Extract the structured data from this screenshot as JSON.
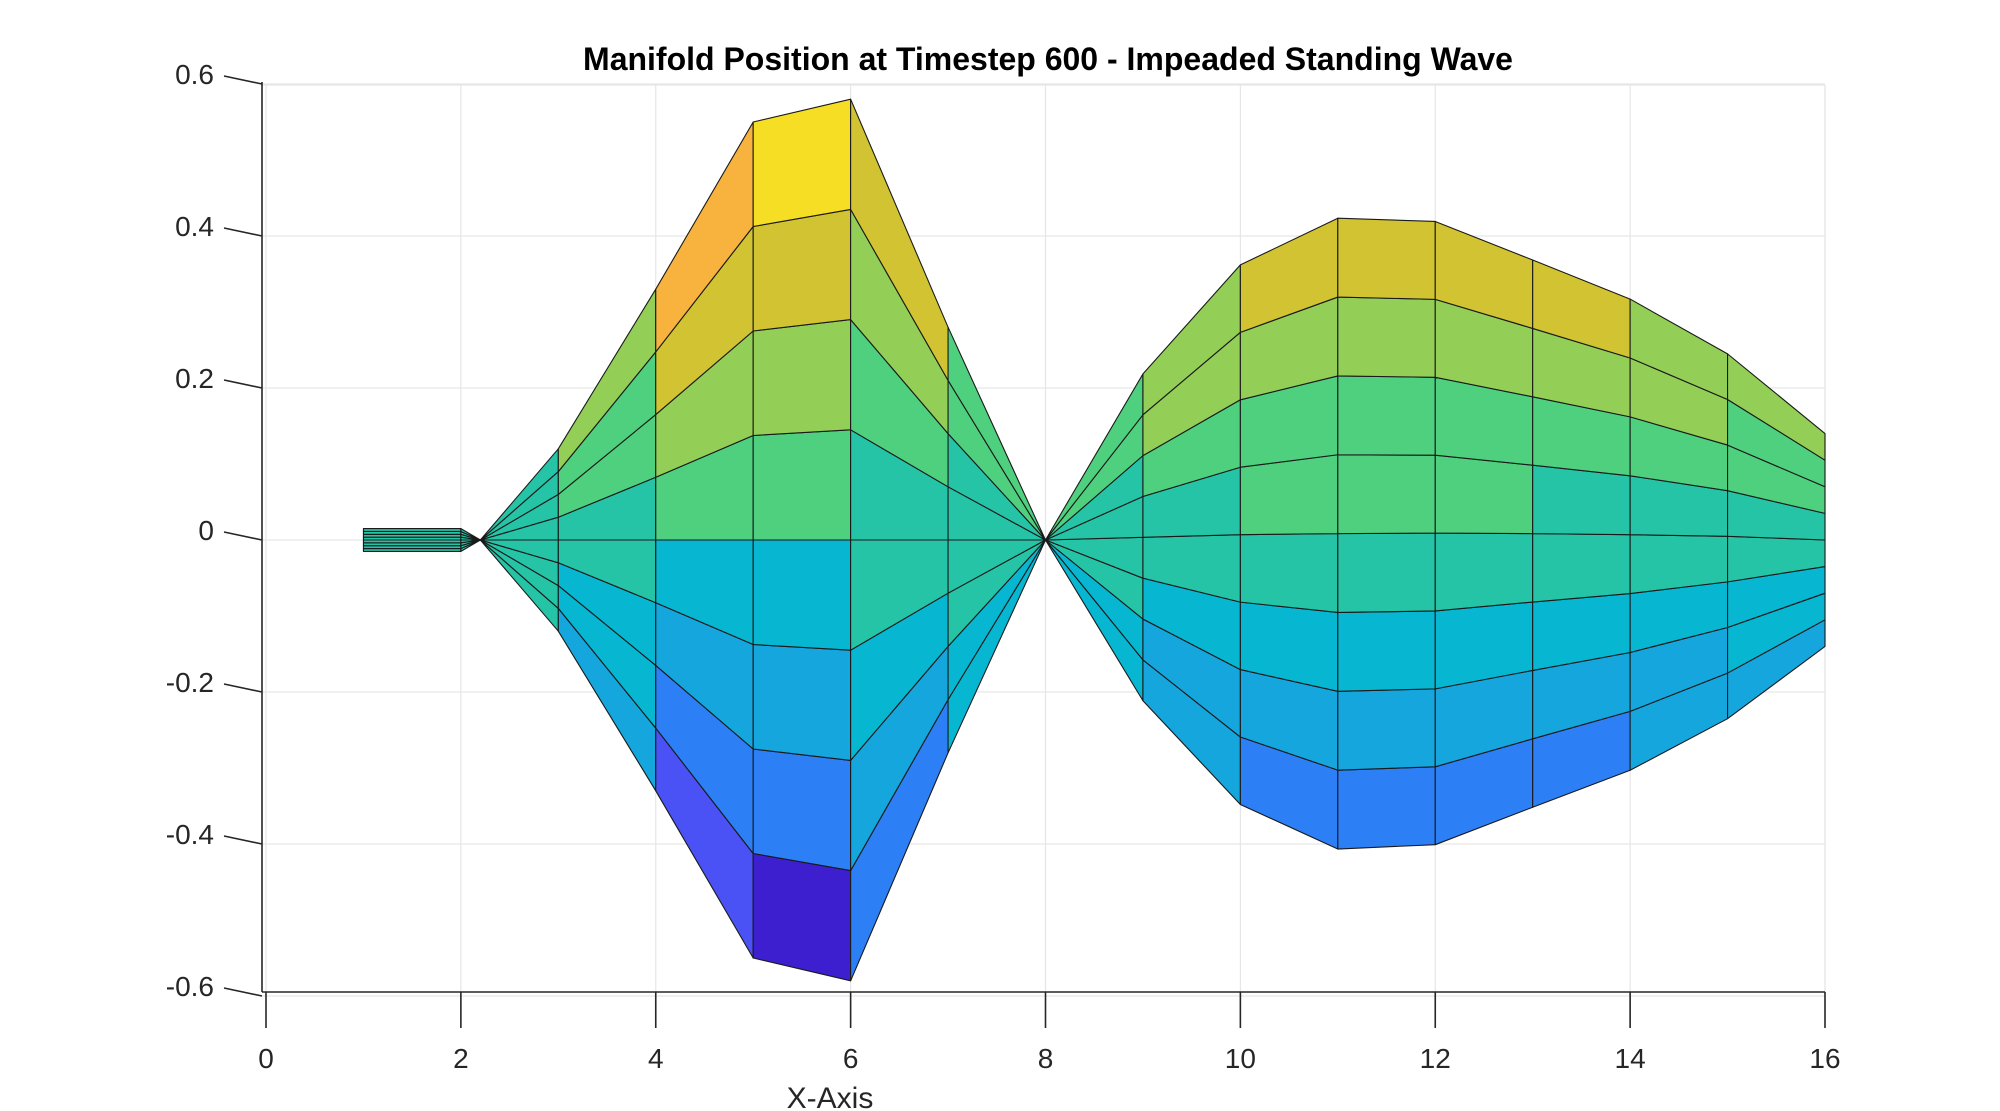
{
  "chart_data": {
    "type": "surface",
    "title": "Manifold Position at Timestep 600 - Impeaded Standing Wave",
    "xlabel": "X-Axis",
    "ylabel": "",
    "xlim": [
      0,
      16
    ],
    "ylim": [
      -0.6,
      0.6
    ],
    "x_ticks": [
      0,
      2,
      4,
      6,
      8,
      10,
      12,
      14,
      16
    ],
    "x_tick_labels": [
      "0",
      "2",
      "4",
      "6",
      "8",
      "10",
      "12",
      "14",
      "16"
    ],
    "y_ticks": [
      0.6,
      0.4,
      0.2,
      0,
      -0.2,
      -0.4,
      -0.6
    ],
    "y_tick_labels": [
      "0.6",
      "0.4",
      "0.2",
      "0",
      "-0.2",
      "-0.4",
      "-0.6"
    ],
    "grid": true,
    "colormap": "parula",
    "band_levels": [
      -1,
      -0.75,
      -0.5,
      -0.25,
      0,
      0.25,
      0.5,
      0.75,
      1
    ],
    "wave": {
      "left": {
        "x": [
          1,
          2,
          2.2,
          3,
          4,
          5,
          6,
          7,
          8
        ],
        "amplitude": [
          0.015,
          0.015,
          0,
          0.12,
          0.33,
          0.55,
          0.58,
          0.28,
          0
        ]
      },
      "right": {
        "x": [
          8,
          9,
          10,
          11,
          12,
          13,
          14,
          15,
          16
        ],
        "amplitude": [
          0,
          0.215,
          0.355,
          0.415,
          0.41,
          0.36,
          0.31,
          0.24,
          0.14
        ]
      },
      "right_center": [
        0,
        0.05,
        0.1,
        0.12,
        0.13,
        0.12,
        0.1,
        0.07,
        0.0
      ]
    },
    "colors": {
      "bands": [
        "#3d1fcf",
        "#4a52f5",
        "#2d7ff6",
        "#14a6dc",
        "#07b7d1",
        "#26c4a6",
        "#4fd07e",
        "#93cf56",
        "#d2c332",
        "#f7b33e",
        "#f5de23"
      ],
      "edge": "#1a1a1a",
      "grid": "#e6e6e6",
      "axis": "#262626"
    }
  }
}
